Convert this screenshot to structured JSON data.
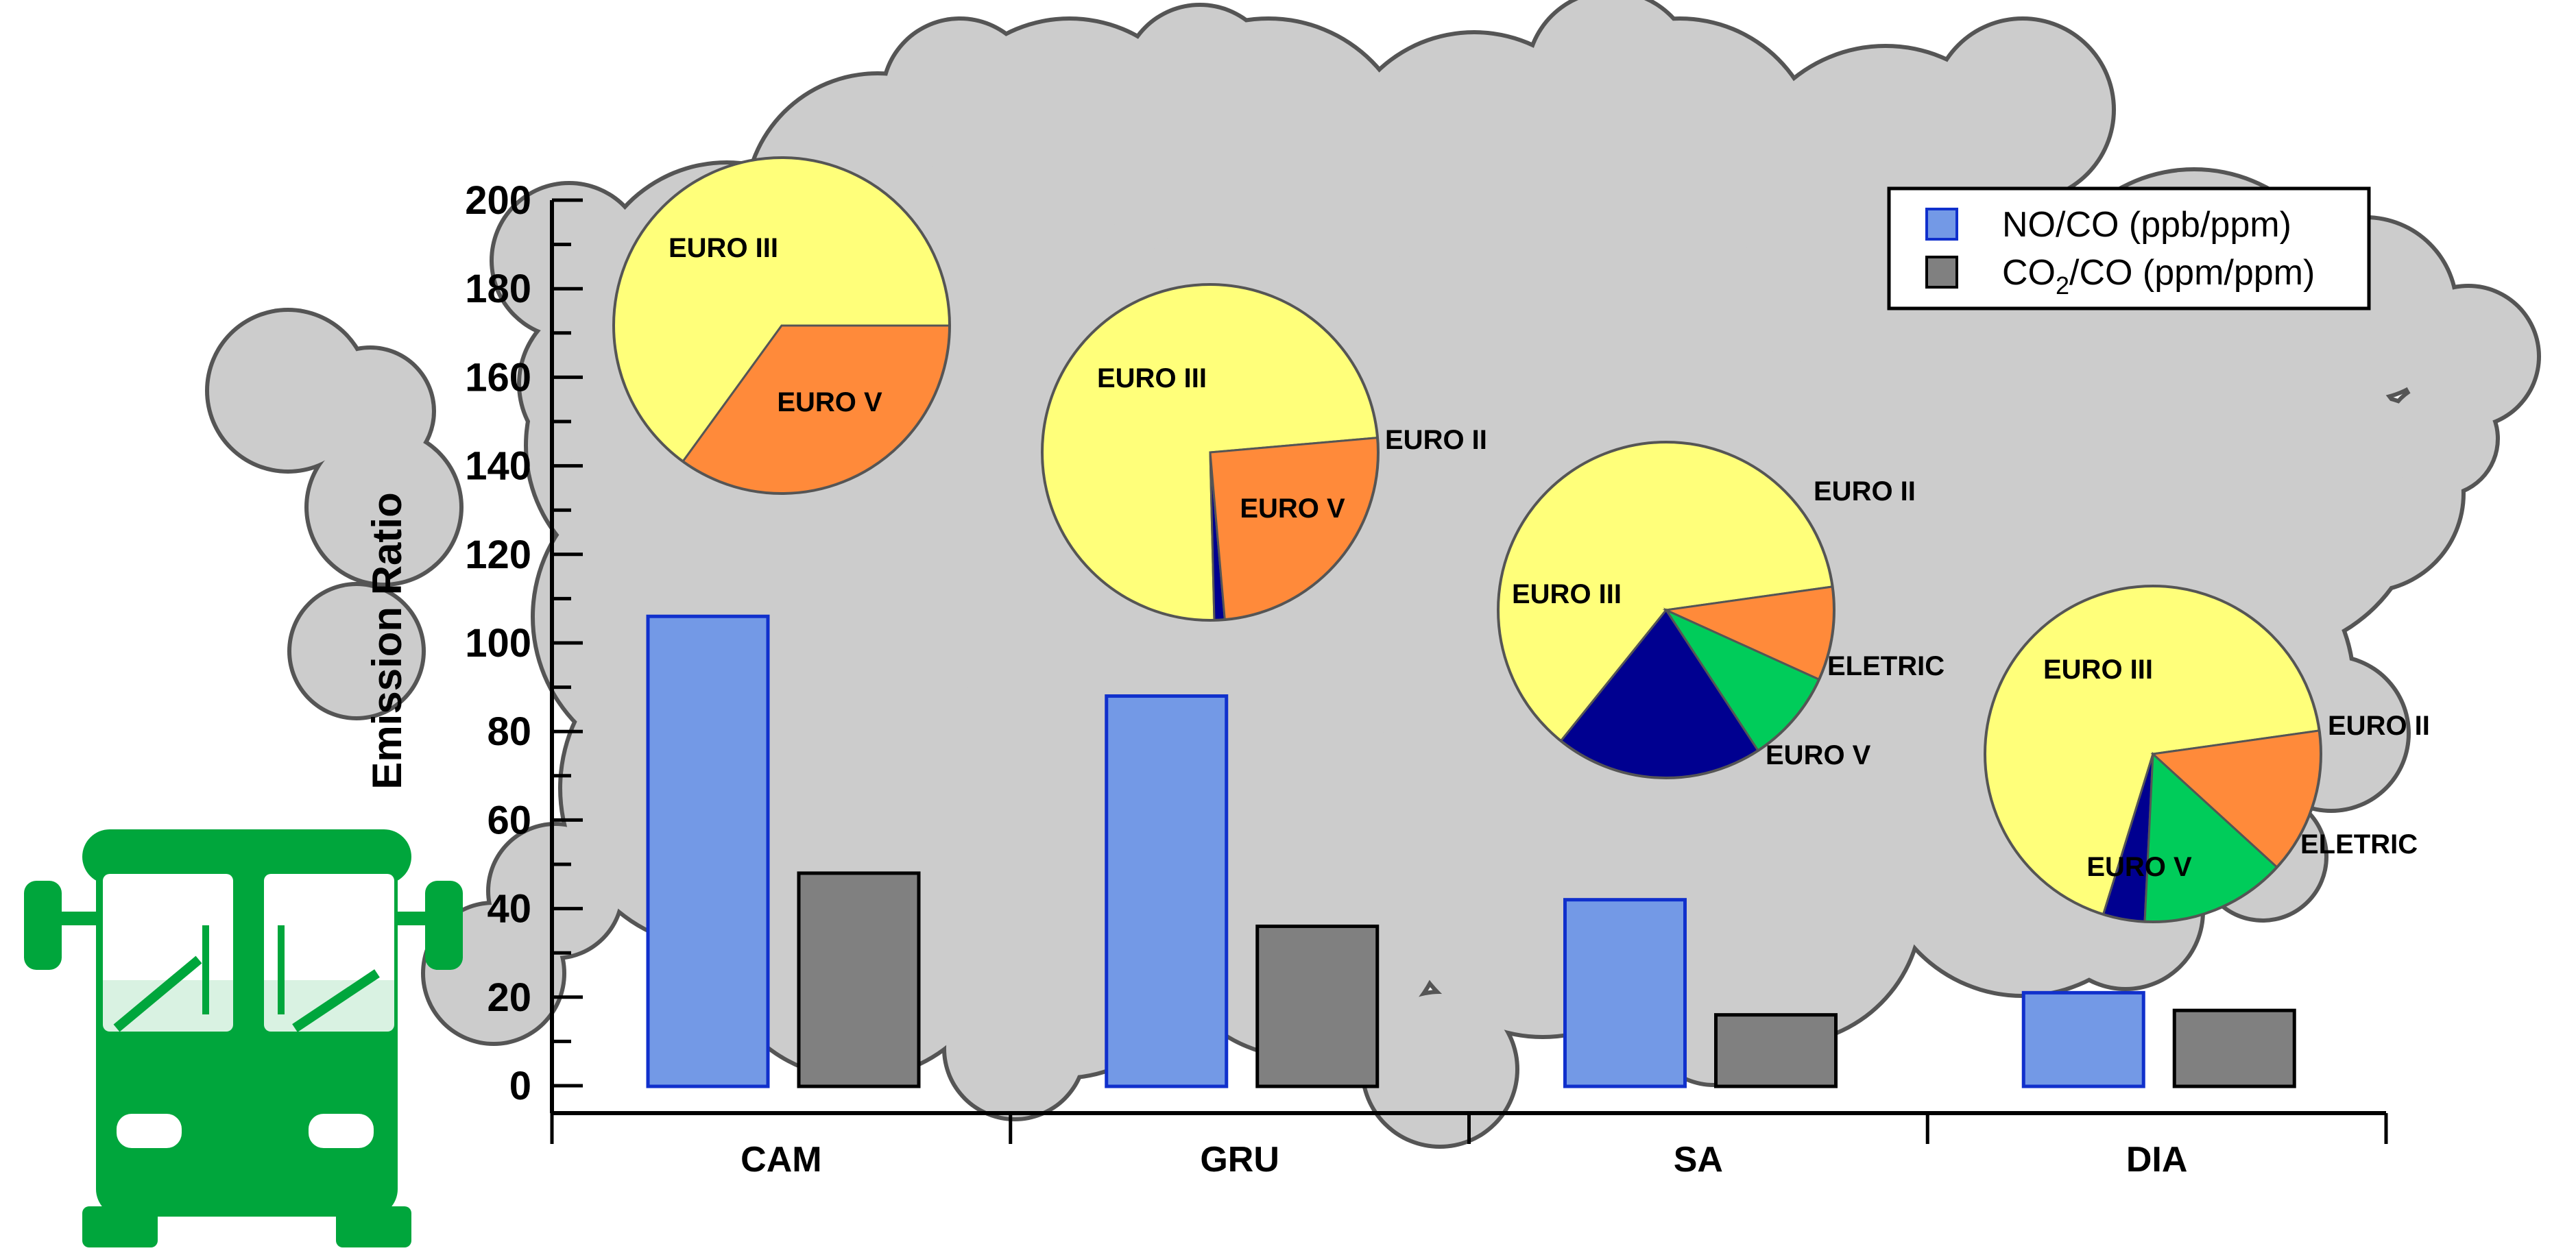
{
  "chart_data": {
    "type": "bar",
    "ylabel": "Emission Ratio",
    "ylim": [
      0,
      200
    ],
    "yticks": [
      0,
      20,
      40,
      60,
      80,
      100,
      120,
      140,
      160,
      180,
      200
    ],
    "categories": [
      "CAM",
      "GRU",
      "SA",
      "DIA"
    ],
    "series": [
      {
        "name": "NO/CO (ppb/ppm)",
        "color": "#7399e6",
        "edge": "#1030cc",
        "values": [
          106,
          88,
          42,
          21
        ]
      },
      {
        "name": "CO2/CO (ppm/ppm)",
        "name_main": "CO",
        "name_sub": "2",
        "name_rest": "/CO (ppm/ppm)",
        "color": "#808080",
        "edge": "#000000",
        "values": [
          48,
          36,
          16,
          17
        ]
      }
    ],
    "legend": {
      "position": "top-right"
    },
    "pies": [
      {
        "category": "CAM",
        "type": "pie",
        "slices": [
          {
            "label": "EURO III",
            "value": 65,
            "color": "#ffff7a"
          },
          {
            "label": "EURO V",
            "value": 35,
            "color": "#ff8a3a"
          }
        ]
      },
      {
        "category": "GRU",
        "type": "pie",
        "slices": [
          {
            "label": "EURO III",
            "value": 74,
            "color": "#ffff7a"
          },
          {
            "label": "EURO II",
            "value": 1,
            "color": "#000090"
          },
          {
            "label": "EURO V",
            "value": 25,
            "color": "#ff8a3a"
          }
        ]
      },
      {
        "category": "SA",
        "type": "pie",
        "slices": [
          {
            "label": "EURO III",
            "value": 62,
            "color": "#ffff7a"
          },
          {
            "label": "EURO II",
            "value": 20,
            "color": "#000090"
          },
          {
            "label": "ELETRIC",
            "value": 9,
            "color": "#00cc5a"
          },
          {
            "label": "EURO V",
            "value": 9,
            "color": "#ff8a3a"
          }
        ]
      },
      {
        "category": "DIA",
        "type": "pie",
        "slices": [
          {
            "label": "EURO III",
            "value": 68,
            "color": "#ffff7a"
          },
          {
            "label": "EURO II",
            "value": 4,
            "color": "#000090"
          },
          {
            "label": "ELETRIC",
            "value": 14,
            "color": "#00cc5a"
          },
          {
            "label": "EURO V",
            "value": 14,
            "color": "#ff8a3a"
          }
        ]
      }
    ]
  },
  "colors": {
    "cloud": "#cccccc",
    "bus": "#00a63c"
  },
  "icons": {
    "bus": "bus-icon",
    "smoke": "smoke-cloud-icon"
  }
}
